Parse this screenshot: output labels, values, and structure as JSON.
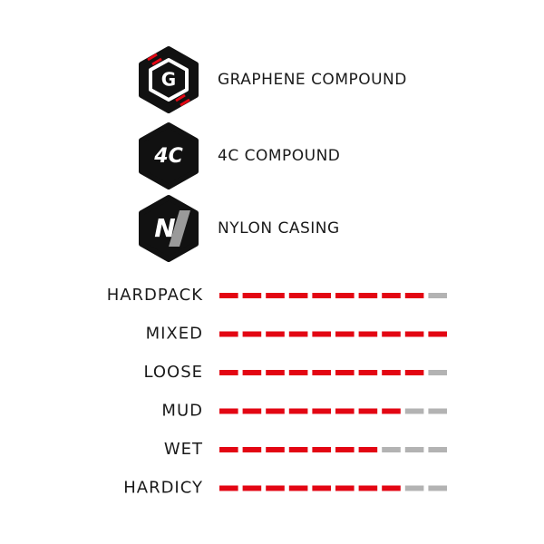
{
  "features": [
    {
      "icon": "G",
      "label": "GRAPHENE COMPOUND"
    },
    {
      "icon": "4C",
      "label": "4C COMPOUND"
    },
    {
      "icon": "N",
      "label": "NYLON CASING"
    }
  ],
  "chart_data": {
    "type": "rating",
    "categories": [
      "HARDPACK",
      "MIXED",
      "LOOSE",
      "MUD",
      "WET",
      "HARDICY"
    ],
    "values": [
      9,
      10,
      9,
      8,
      7,
      8
    ],
    "xlim": [
      0,
      10
    ],
    "color": "#e30613",
    "track_color": "#b3b3b3"
  }
}
